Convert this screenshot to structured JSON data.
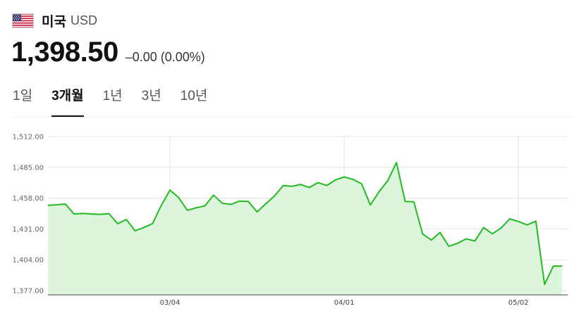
{
  "header": {
    "flag_icon": "us-flag-icon",
    "country": "미국",
    "currency": "USD"
  },
  "quote": {
    "price": "1,398.50",
    "change": "–0.00 (0.00%)"
  },
  "tabs": [
    {
      "label": "1일",
      "active": false
    },
    {
      "label": "3개월",
      "active": true
    },
    {
      "label": "1년",
      "active": false
    },
    {
      "label": "3년",
      "active": false
    },
    {
      "label": "10년",
      "active": false
    }
  ],
  "colors": {
    "line": "#22bb22",
    "fill": "#dcf5dc",
    "grid": "#e3e3e3"
  },
  "chart_data": {
    "type": "area",
    "title": "",
    "xlabel": "",
    "ylabel": "",
    "ylim": [
      1377,
      1512
    ],
    "yticks": [
      1512.0,
      1485.0,
      1458.0,
      1431.0,
      1404.0,
      1377.0
    ],
    "ytick_labels": [
      "1,512.00",
      "1,485.00",
      "1,458.00",
      "1,431.00",
      "1,404.00",
      "1,377.00"
    ],
    "xtick_labels": [
      "03/04",
      "04/01",
      "05/02"
    ],
    "xtick_index": [
      14,
      34,
      54
    ],
    "grid": true,
    "series": [
      {
        "values": [
          1451.8,
          1452.2,
          1452.9,
          1444.1,
          1444.7,
          1444.1,
          1443.8,
          1444.5,
          1435.7,
          1439.3,
          1429.4,
          1432.3,
          1435.7,
          1451.6,
          1465.1,
          1458.6,
          1447.4,
          1449.6,
          1451.2,
          1460.7,
          1453.6,
          1452.6,
          1455.5,
          1455.1,
          1446.0,
          1453.1,
          1460.0,
          1469.1,
          1468.4,
          1470.0,
          1467.4,
          1471.7,
          1469.1,
          1474.0,
          1476.6,
          1474.5,
          1470.5,
          1452.1,
          1463.6,
          1473.4,
          1489.1,
          1455.1,
          1454.8,
          1426.7,
          1421.3,
          1428.0,
          1415.9,
          1418.5,
          1422.4,
          1420.5,
          1432.3,
          1426.8,
          1431.8,
          1439.9,
          1437.6,
          1434.6,
          1437.9,
          1382.5,
          1398.5,
          1398.5
        ]
      }
    ]
  }
}
